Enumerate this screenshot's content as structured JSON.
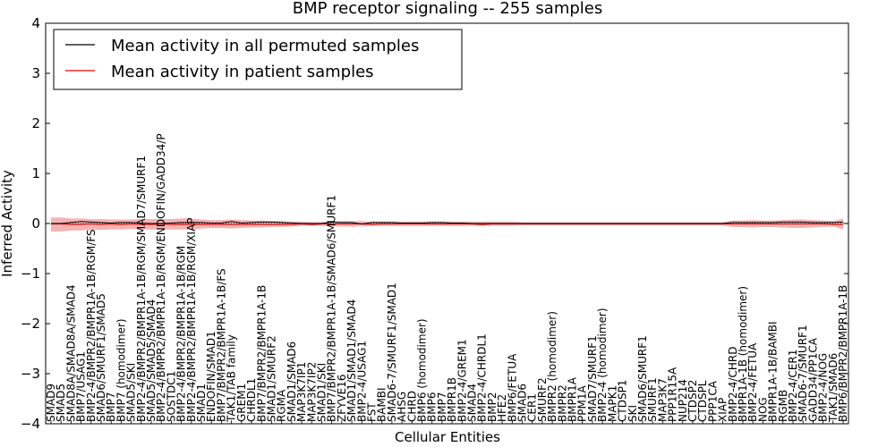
{
  "chart_data": {
    "type": "line",
    "title": "BMP receptor signaling -- 255 samples",
    "xlabel": "Cellular Entities",
    "ylabel": "Inferred Activity",
    "ylim": [
      -4,
      4
    ],
    "yticks": [
      -4,
      -3,
      -2,
      -1,
      0,
      1,
      2,
      3,
      4
    ],
    "ytick_labels": [
      "−4",
      "−3",
      "−2",
      "−1",
      "0",
      "1",
      "2",
      "3",
      "4"
    ],
    "legend": {
      "position": "top-left",
      "entries": [
        {
          "label": "Mean activity in all permuted samples",
          "color": "#000000"
        },
        {
          "label": "Mean activity in patient samples",
          "color": "#dd0000"
        }
      ]
    },
    "categories": [
      "SMAD9",
      "SMAD5",
      "SMAD8A/SMAD8A/SMAD4",
      "BMP7/USAG1",
      "BMP2-4/BMPR2/BMPR1A-1B/RGM/FS",
      "SMAD6/SMURF1/SMAD5",
      "BMP7",
      "BMP7 (homodimer)",
      "SMAD5/SKI",
      "BMP2-4/BMPR2/BMPR1A-1B/RGM/SMAD7/SMURF1",
      "SMAD5/SMAD5/SMAD4",
      "BMP2-4/BMPR2/BMPR1A-1B/RGM/ENDOFIN/GADD34/P",
      "SOSTDC1",
      "BMP2-4/BMPR2/BMPR1A-1B/RGM",
      "BMP2-4/BMPR2/BMPR1A-1B/RGM/XIAP",
      "SMAD1",
      "ENDOFIN/SMAD1",
      "BMP7/BMPR2/BMPR1A-1B/FS",
      "TAK1/TAB family",
      "GREM1",
      "CHRDL1",
      "BMP7/BMPR2/BMPR1A-1B",
      "SMAD1/SMURF2",
      "RGMA",
      "SMAD1/SMAD6",
      "MAP3K7IP1",
      "MAP3K7IP2",
      "SMAD1/SKI",
      "BMP7/BMPR2/BMPR1A-1B/SMAD6/SMURF1",
      "ZFYVE16",
      "SMAD1/SMAD1/SMAD4",
      "BMP2-4/USAG1",
      "FST",
      "BAMBI",
      "SMAD6-7/SMURF1/SMAD1",
      "AHSG",
      "CHRD",
      "BMP6 (homodimer)",
      "BMP6",
      "BMP7",
      "BMPR1B",
      "BMP2-4/GREM1",
      "SMAD4",
      "BMP2-4/CHRDL1",
      "BMP2",
      "HFE2",
      "BMP6/FETUA",
      "SMAD6",
      "CER1",
      "SMURF2",
      "BMPR2 (homodimer)",
      "BMPR2",
      "BMPR1A",
      "PPM1A",
      "SMAD7/SMURF1",
      "BMP2-4 (homodimer)",
      "MAPK1",
      "CTDSP1",
      "SKI",
      "SMAD6/SMURF1",
      "SMURF1",
      "MAP3K7",
      "PPP1R15A",
      "NUP214",
      "CTDSP2",
      "CTDSPL",
      "PPP1CA",
      "XIAP",
      "BMP2-4/CHRD",
      "BMPR1A-1B (homodimer)",
      "BMP2-4/FETUA",
      "NOG",
      "BMPR1A-1B/BAMBI",
      "RGMB",
      "BMP2-4/CER1",
      "SMAD6-7/SMURF1",
      "GADD34/PP1CA",
      "BMP2-4/NOG",
      "TAK1/SMAD6",
      "BMP6/BMPR2/BMPR1A-1B"
    ],
    "series": [
      {
        "name": "Mean activity in all permuted samples",
        "color": "#000000",
        "values": [
          0.0,
          0.0,
          0.02,
          0.04,
          0.03,
          0.02,
          0.01,
          0.02,
          0.02,
          0.01,
          0.0,
          0.0,
          0.01,
          0.02,
          0.02,
          0.02,
          0.01,
          0.01,
          0.04,
          0.01,
          0.02,
          0.03,
          0.03,
          0.02,
          0.01,
          0.0,
          0.0,
          0.0,
          0.03,
          0.02,
          0.02,
          -0.01,
          0.02,
          0.02,
          0.02,
          0.01,
          0.01,
          0.01,
          0.02,
          0.02,
          0.01,
          0.01,
          0.0,
          0.0,
          0.0,
          0.0,
          0.0,
          0.0,
          0.0,
          0.0,
          0.0,
          0.0,
          0.0,
          0.0,
          0.0,
          0.0,
          0.0,
          0.0,
          0.0,
          0.0,
          0.0,
          0.0,
          0.0,
          0.0,
          0.0,
          0.0,
          0.0,
          0.0,
          0.02,
          0.02,
          0.02,
          0.02,
          0.02,
          0.03,
          0.03,
          0.03,
          0.02,
          0.02,
          0.02,
          0.03
        ]
      },
      {
        "name": "Mean activity in patient samples",
        "color": "#dd0000",
        "values": [
          -0.01,
          -0.01,
          -0.02,
          -0.02,
          -0.01,
          -0.02,
          -0.01,
          -0.02,
          -0.01,
          -0.02,
          -0.02,
          -0.01,
          -0.02,
          -0.02,
          -0.02,
          -0.02,
          -0.02,
          -0.02,
          -0.02,
          -0.02,
          -0.02,
          -0.02,
          -0.02,
          -0.02,
          -0.02,
          -0.01,
          -0.02,
          -0.01,
          -0.01,
          -0.01,
          -0.01,
          -0.01,
          -0.02,
          -0.01,
          -0.01,
          -0.01,
          -0.01,
          -0.01,
          -0.01,
          -0.01,
          -0.01,
          -0.01,
          -0.01,
          -0.02,
          -0.01,
          -0.01,
          -0.01,
          -0.01,
          -0.01,
          -0.01,
          -0.01,
          -0.01,
          -0.01,
          -0.01,
          -0.01,
          -0.01,
          -0.01,
          -0.01,
          -0.01,
          -0.01,
          -0.01,
          -0.01,
          -0.01,
          -0.01,
          -0.01,
          -0.01,
          -0.01,
          -0.01,
          -0.01,
          -0.01,
          -0.01,
          -0.01,
          -0.01,
          -0.01,
          -0.01,
          -0.01,
          -0.01,
          -0.01,
          -0.02,
          -0.02
        ],
        "band_upper": [
          0.12,
          0.12,
          0.1,
          0.1,
          0.09,
          0.09,
          0.08,
          0.08,
          0.08,
          0.09,
          0.09,
          0.09,
          0.09,
          0.1,
          0.1,
          0.08,
          0.07,
          0.07,
          0.08,
          0.07,
          0.06,
          0.06,
          0.05,
          0.05,
          0.04,
          0.04,
          0.03,
          0.03,
          0.04,
          0.05,
          0.05,
          0.05,
          0.04,
          0.04,
          0.04,
          0.04,
          0.04,
          0.04,
          0.04,
          0.04,
          0.04,
          0.04,
          0.04,
          0.04,
          0.04,
          0.04,
          0.04,
          0.03,
          0.03,
          0.03,
          0.03,
          0.03,
          0.03,
          0.03,
          0.03,
          0.03,
          0.03,
          0.03,
          0.03,
          0.03,
          0.03,
          0.03,
          0.03,
          0.03,
          0.03,
          0.03,
          0.03,
          0.03,
          0.06,
          0.06,
          0.07,
          0.06,
          0.06,
          0.07,
          0.08,
          0.08,
          0.07,
          0.06,
          0.05,
          0.1
        ],
        "band_lower": [
          -0.16,
          -0.16,
          -0.14,
          -0.14,
          -0.12,
          -0.13,
          -0.12,
          -0.12,
          -0.11,
          -0.12,
          -0.12,
          -0.12,
          -0.12,
          -0.12,
          -0.12,
          -0.1,
          -0.09,
          -0.09,
          -0.1,
          -0.09,
          -0.08,
          -0.08,
          -0.07,
          -0.07,
          -0.06,
          -0.05,
          -0.05,
          -0.05,
          -0.06,
          -0.06,
          -0.06,
          -0.06,
          -0.05,
          -0.05,
          -0.05,
          -0.05,
          -0.05,
          -0.05,
          -0.05,
          -0.05,
          -0.05,
          -0.05,
          -0.05,
          -0.05,
          -0.05,
          -0.05,
          -0.05,
          -0.04,
          -0.04,
          -0.04,
          -0.04,
          -0.04,
          -0.04,
          -0.04,
          -0.04,
          -0.04,
          -0.04,
          -0.04,
          -0.04,
          -0.04,
          -0.04,
          -0.04,
          -0.04,
          -0.04,
          -0.04,
          -0.04,
          -0.04,
          -0.04,
          -0.07,
          -0.07,
          -0.08,
          -0.07,
          -0.07,
          -0.08,
          -0.09,
          -0.09,
          -0.08,
          -0.07,
          -0.06,
          -0.12
        ]
      }
    ]
  }
}
